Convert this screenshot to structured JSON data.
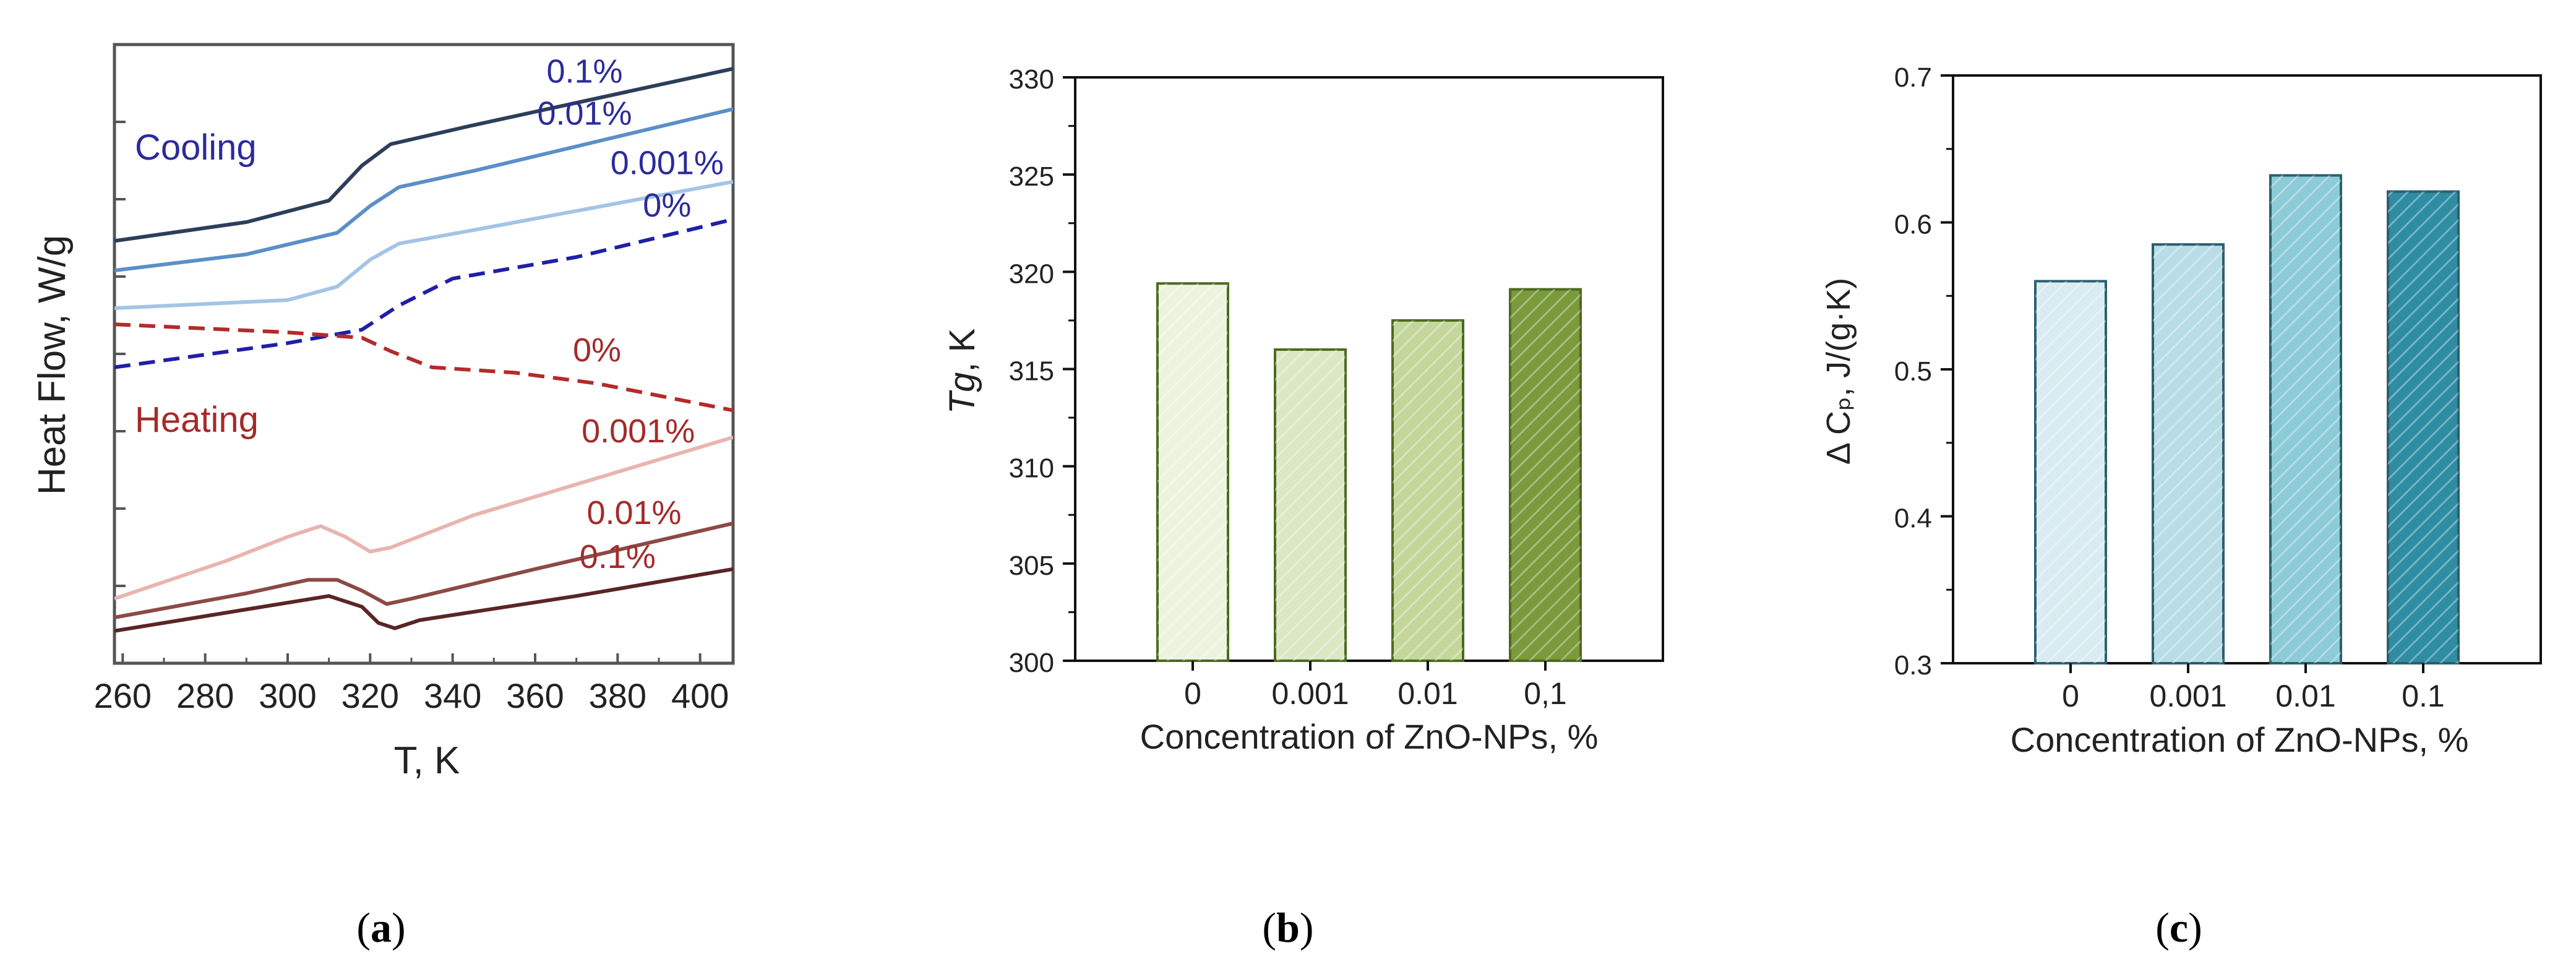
{
  "panels": {
    "a": {
      "caption_open": "(",
      "caption_letter": "a",
      "caption_close": ")",
      "chart_data": {
        "type": "line",
        "title": "",
        "xlabel": "T, K",
        "ylabel": "Heat Flow, W/g",
        "xlim": [
          258,
          408
        ],
        "x_ticks": [
          260,
          280,
          300,
          320,
          340,
          360,
          380,
          400
        ],
        "y_tick_labels": false,
        "annotations": [
          {
            "text": "Cooling",
            "color": "#2b2b9c"
          },
          {
            "text": "Heating",
            "color": "#a52a2a"
          }
        ],
        "series": [
          {
            "name": "0.1%",
            "group": "Cooling",
            "color": "#2c3e5a",
            "dash": false,
            "points": [
              [
                258,
                -0.3
              ],
              [
                290,
                0.4
              ],
              [
                310,
                1.2
              ],
              [
                318,
                2.5
              ],
              [
                325,
                3.3
              ],
              [
                345,
                4.0
              ],
              [
                408,
                6.1
              ]
            ]
          },
          {
            "name": "0.01%",
            "group": "Cooling",
            "color": "#5b8fc8",
            "dash": false,
            "points": [
              [
                258,
                -1.4
              ],
              [
                290,
                -0.8
              ],
              [
                312,
                0.0
              ],
              [
                320,
                1.0
              ],
              [
                327,
                1.7
              ],
              [
                345,
                2.3
              ],
              [
                408,
                4.6
              ]
            ]
          },
          {
            "name": "0.001%",
            "group": "Cooling",
            "color": "#a3c4e6",
            "dash": false,
            "points": [
              [
                258,
                -2.8
              ],
              [
                300,
                -2.5
              ],
              [
                312,
                -2.0
              ],
              [
                320,
                -1.0
              ],
              [
                327,
                -0.4
              ],
              [
                345,
                0.1
              ],
              [
                408,
                1.9
              ]
            ]
          },
          {
            "name": "0%",
            "group": "Cooling",
            "color": "#1f1fa8",
            "dash": true,
            "points": [
              [
                258,
                -5.0
              ],
              [
                300,
                -4.1
              ],
              [
                318,
                -3.6
              ],
              [
                327,
                -2.7
              ],
              [
                340,
                -1.7
              ],
              [
                370,
                -0.9
              ],
              [
                408,
                0.5
              ]
            ]
          },
          {
            "name": "0%",
            "group": "Heating",
            "color": "#b52a2a",
            "dash": true,
            "points": [
              [
                258,
                -3.4
              ],
              [
                300,
                -3.7
              ],
              [
                318,
                -3.9
              ],
              [
                325,
                -4.4
              ],
              [
                335,
                -5.0
              ],
              [
                355,
                -5.2
              ],
              [
                375,
                -5.6
              ],
              [
                408,
                -6.6
              ]
            ]
          },
          {
            "name": "0.001%",
            "group": "Heating",
            "color": "#e9b4b0",
            "dash": false,
            "points": [
              [
                258,
                -13.6
              ],
              [
                285,
                -12.2
              ],
              [
                300,
                -11.3
              ],
              [
                308,
                -10.9
              ],
              [
                314,
                -11.3
              ],
              [
                320,
                -11.85
              ],
              [
                325,
                -11.7
              ],
              [
                345,
                -10.5
              ],
              [
                408,
                -7.6
              ]
            ]
          },
          {
            "name": "0.01%",
            "group": "Heating",
            "color": "#8c4a45",
            "dash": false,
            "points": [
              [
                258,
                -14.3
              ],
              [
                290,
                -13.4
              ],
              [
                305,
                -12.9
              ],
              [
                312,
                -12.9
              ],
              [
                318,
                -13.3
              ],
              [
                324,
                -13.8
              ],
              [
                330,
                -13.6
              ],
              [
                360,
                -12.5
              ],
              [
                408,
                -10.8
              ]
            ]
          },
          {
            "name": "0.1%",
            "group": "Heating",
            "color": "#5b2525",
            "dash": false,
            "points": [
              [
                258,
                -14.8
              ],
              [
                290,
                -14.0
              ],
              [
                310,
                -13.5
              ],
              [
                318,
                -13.9
              ],
              [
                322,
                -14.5
              ],
              [
                326,
                -14.7
              ],
              [
                332,
                -14.4
              ],
              [
                370,
                -13.5
              ],
              [
                408,
                -12.5
              ]
            ]
          }
        ]
      }
    },
    "b": {
      "caption_open": "(",
      "caption_letter": "b",
      "caption_close": ")",
      "chart_data": {
        "type": "bar",
        "title": "",
        "xlabel": "Concentration of ZnO-NPs, %",
        "ylabel_italic": "Tg",
        "ylabel_rest": ", K",
        "categories": [
          "0",
          "0.001",
          "0.01",
          "0,1"
        ],
        "values": [
          319.4,
          316.0,
          317.5,
          319.1
        ],
        "ylim": [
          300,
          330
        ],
        "y_ticks": [
          "300",
          "305",
          "310",
          "315",
          "320",
          "325",
          "330"
        ],
        "bar_colors": [
          "#eef3e0",
          "#dce7c4",
          "#c4d79b",
          "#7a9a3c"
        ],
        "edge_color": "#4a6b1f"
      }
    },
    "c": {
      "caption_open": "(",
      "caption_letter": "c",
      "caption_close": ")",
      "chart_data": {
        "type": "bar",
        "title": "",
        "xlabel": "Concentration of ZnO-NPs, %",
        "ylabel": "Δ Cₚ, J/(g·K)",
        "categories": [
          "0",
          "0.001",
          "0.01",
          "0.1"
        ],
        "values": [
          0.56,
          0.585,
          0.632,
          0.621
        ],
        "ylim": [
          0.3,
          0.7
        ],
        "y_ticks": [
          "0.3",
          "0.4",
          "0.5",
          "0.6",
          "0.7"
        ],
        "bar_colors": [
          "#d9ecf2",
          "#b8dde6",
          "#8ccbd8",
          "#2e8ca3"
        ],
        "edge_color": "#2a5f6e"
      }
    }
  }
}
